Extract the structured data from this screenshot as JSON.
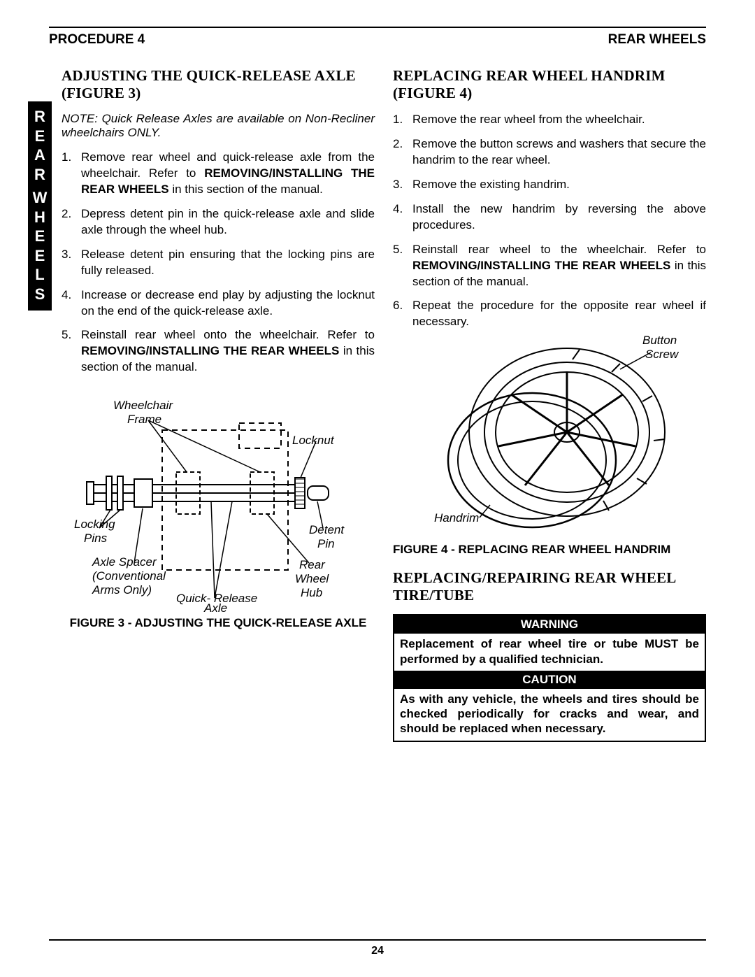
{
  "header": {
    "left": "PROCEDURE 4",
    "right": "REAR WHEELS"
  },
  "side_tab": [
    "R",
    "E",
    "A",
    "R",
    "W",
    "H",
    "E",
    "E",
    "L",
    "S"
  ],
  "left_col": {
    "heading": "ADJUSTING THE QUICK-RELEASE AXLE (FIGURE 3)",
    "note": "NOTE: Quick Release Axles are available on Non-Recliner wheelchairs ONLY.",
    "steps": [
      "Remove rear wheel and quick-release axle from the wheelchair. Refer to <b>REMOVING/INSTALLING THE REAR WHEELS</b> in this section of the manual.",
      "Depress detent pin in the quick-release axle and slide axle through the wheel hub.",
      "Release detent pin ensuring that the locking pins are fully released.",
      "Increase or decrease end play by adjusting the locknut on the end of the quick-release axle.",
      "Reinstall rear wheel onto the wheelchair. Refer to <b>REMOVING/INSTALLING THE REAR WHEELS</b> in this section of the manual."
    ],
    "fig_labels": {
      "frame": "Wheelchair Frame",
      "locknut": "Locknut",
      "locking_pins": "Locking Pins",
      "axle_spacer": "Axle Spacer (Conventional Arms Only)",
      "quick_release": "Quick- Release Axle",
      "detent_pin": "Detent Pin",
      "rear_hub": "Rear Wheel Hub"
    },
    "fig_caption": "FIGURE 3 - ADJUSTING THE QUICK-RELEASE AXLE"
  },
  "right_col": {
    "heading1": "REPLACING REAR WHEEL HANDRIM (FIGURE 4)",
    "steps1": [
      "Remove the rear wheel from the wheelchair.",
      "Remove the button screws and washers that secure the handrim to the rear wheel.",
      "Remove the existing handrim.",
      "Install the new handrim by reversing the above procedures.",
      "Reinstall rear wheel to the wheelchair. Refer to <b>REMOVING/INSTALLING THE REAR WHEELS</b> in this section of the manual.",
      "Repeat the procedure for the opposite rear wheel if necessary."
    ],
    "fig4_labels": {
      "button_screw": "Button Screw",
      "handrim": "Handrim"
    },
    "fig4_caption": "FIGURE 4 - REPLACING REAR WHEEL HANDRIM",
    "heading2": "REPLACING/REPAIRING REAR WHEEL TIRE/TUBE",
    "warning_head": "WARNING",
    "warning_body": "Replacement of rear wheel tire or tube MUST be performed by a qualified technician.",
    "caution_head": "CAUTION",
    "caution_body": "As with any vehicle, the wheels and tires should be checked periodically for cracks and wear, and should be replaced when necessary."
  },
  "page_number": "24"
}
